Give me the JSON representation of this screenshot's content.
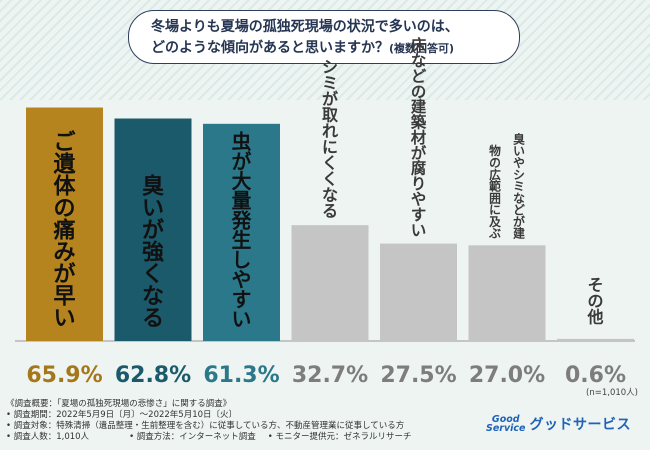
{
  "question": {
    "line1": "冬場よりも夏場の孤独死現場の状況で多いのは、",
    "line2": "どのような傾向があると思いますか？",
    "note": "(複数回答可)"
  },
  "chart_data": {
    "type": "bar",
    "categories": [
      "ご遺体の痛みが早い",
      "臭いが強くなる",
      "虫が大量発生しやすい",
      "シミが取れにくくなる",
      "床などの建築材が腐りやすい",
      "臭いやシミなどが建物の広範囲に及ぶ",
      "その他"
    ],
    "values": [
      65.9,
      62.8,
      61.3,
      32.7,
      27.5,
      27.0,
      0.6
    ],
    "value_labels": [
      "65.9%",
      "62.8%",
      "61.3%",
      "32.7%",
      "27.5%",
      "27.0%",
      "0.6%"
    ],
    "colors": [
      "#b5841e",
      "#1b5a6b",
      "#2a788a",
      "#c5c5c5",
      "#c5c5c5",
      "#c5c5c5",
      "#c5c5c5"
    ],
    "value_label_colors": [
      "#a4781a",
      "#1b5a6b",
      "#2a788a",
      "#7d7d7d",
      "#7d7d7d",
      "#7d7d7d",
      "#7d7d7d"
    ],
    "ylim": [
      0,
      70
    ],
    "sample_note": "(n=1,010人)"
  },
  "footer": {
    "overview": "《調査概要：「夏場の孤独死現場の悲惨さ」に関する調査》",
    "period": "• 調査期間：2022年5月9日〔月〕～2022年5月10日〔火〕",
    "target": "• 調査対象：特殊清掃（遺品整理・生前整理を含む）に従事している方、不動産管理業に従事している方",
    "people": "• 調査人数：1,010人",
    "method": "• 調査方法：インターネット調査",
    "provider": "• モニター提供元：ゼネラルリサーチ"
  },
  "logo": {
    "mark_line1": "Good",
    "mark_line2": "Service",
    "name": "グッドサービス"
  }
}
